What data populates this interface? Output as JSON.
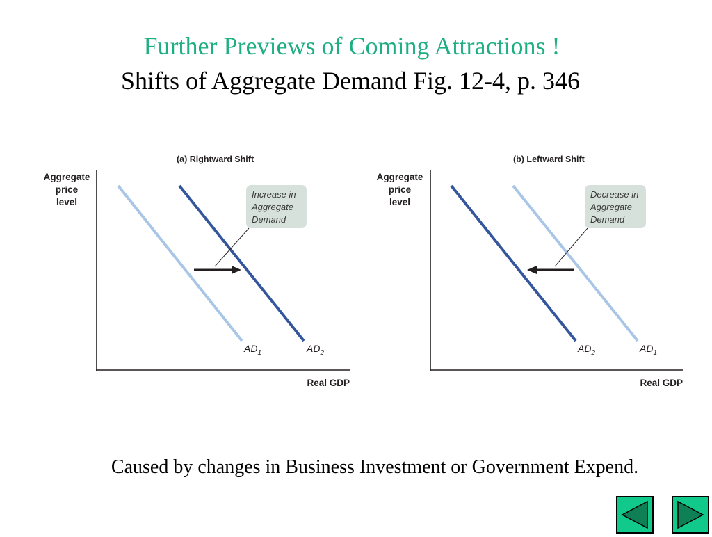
{
  "slide": {
    "title": "Further Previews of Coming Attractions !",
    "subtitle": "Shifts of Aggregate Demand Fig. 12-4, p. 346",
    "caption": "Caused by changes in Business Investment or Government Expend.",
    "title_color": "#1fae82"
  },
  "figure": {
    "panels": [
      {
        "title": "(a)  Rightward Shift",
        "y_axis_label": [
          "Aggregate",
          "price",
          "level"
        ],
        "x_axis_label": "Real GDP",
        "annotation": [
          "Increase in",
          "Aggregate",
          "Demand"
        ],
        "arrow_direction": "right",
        "curves": [
          {
            "label": "AD",
            "subscript": "1",
            "color": "#a9c6e6"
          },
          {
            "label": "AD",
            "subscript": "2",
            "color": "#34569c"
          }
        ]
      },
      {
        "title": "(b)  Leftward Shift",
        "y_axis_label": [
          "Aggregate",
          "price",
          "level"
        ],
        "x_axis_label": "Real GDP",
        "annotation": [
          "Decrease in",
          "Aggregate",
          "Demand"
        ],
        "arrow_direction": "left",
        "curves": [
          {
            "label": "AD",
            "subscript": "2",
            "color": "#34569c"
          },
          {
            "label": "AD",
            "subscript": "1",
            "color": "#a9c6e6"
          }
        ]
      }
    ],
    "colors": {
      "axis": "#231f20",
      "annotation_box": "#d6e1dc",
      "arrow": "#231f20"
    }
  },
  "navigation": {
    "previous_icon": "left-triangle-icon",
    "next_icon": "right-triangle-icon",
    "button_color": "#12c98c"
  }
}
